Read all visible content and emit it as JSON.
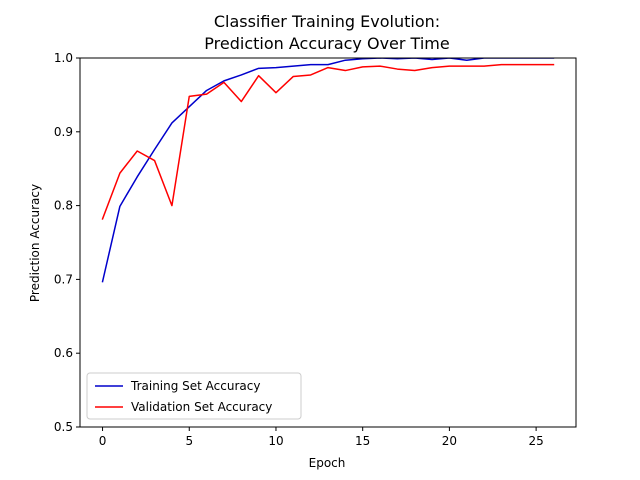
{
  "chart_data": {
    "type": "line",
    "title_line1": "Classifier Training Evolution:",
    "title_line2": "Prediction Accuracy Over Time",
    "xlabel": "Epoch",
    "ylabel": "Prediction Accuracy",
    "xlim": [
      -1.3,
      27.3
    ],
    "ylim": [
      0.5,
      1.0
    ],
    "xticks": [
      0,
      5,
      10,
      15,
      20,
      25
    ],
    "xtick_labels": [
      "0",
      "5",
      "10",
      "15",
      "20",
      "25"
    ],
    "yticks": [
      0.5,
      0.6,
      0.7,
      0.8,
      0.9,
      1.0
    ],
    "ytick_labels": [
      "0.5",
      "0.6",
      "0.7",
      "0.8",
      "0.9",
      "1.0"
    ],
    "legend_position": "lower-left",
    "grid": false,
    "x": [
      0,
      1,
      2,
      3,
      4,
      5,
      6,
      7,
      8,
      9,
      10,
      11,
      12,
      13,
      14,
      15,
      16,
      17,
      18,
      19,
      20,
      21,
      22,
      23,
      24,
      25,
      26
    ],
    "series": [
      {
        "name": "Training Set Accuracy",
        "color": "#0000cc",
        "values": [
          0.697,
          0.799,
          0.839,
          0.876,
          0.912,
          0.934,
          0.956,
          0.969,
          0.977,
          0.986,
          0.987,
          0.989,
          0.991,
          0.991,
          0.997,
          0.999,
          1.0,
          0.999,
          1.0,
          0.998,
          1.0,
          0.997,
          1.0,
          1.0,
          1.0,
          1.0,
          1.0
        ]
      },
      {
        "name": "Validation Set Accuracy",
        "color": "#ff0000",
        "values": [
          0.782,
          0.844,
          0.874,
          0.861,
          0.8,
          0.948,
          0.951,
          0.967,
          0.941,
          0.976,
          0.953,
          0.975,
          0.977,
          0.987,
          0.983,
          0.988,
          0.989,
          0.985,
          0.983,
          0.987,
          0.989,
          0.989,
          0.989,
          0.991,
          0.991,
          0.991,
          0.991
        ]
      }
    ]
  }
}
